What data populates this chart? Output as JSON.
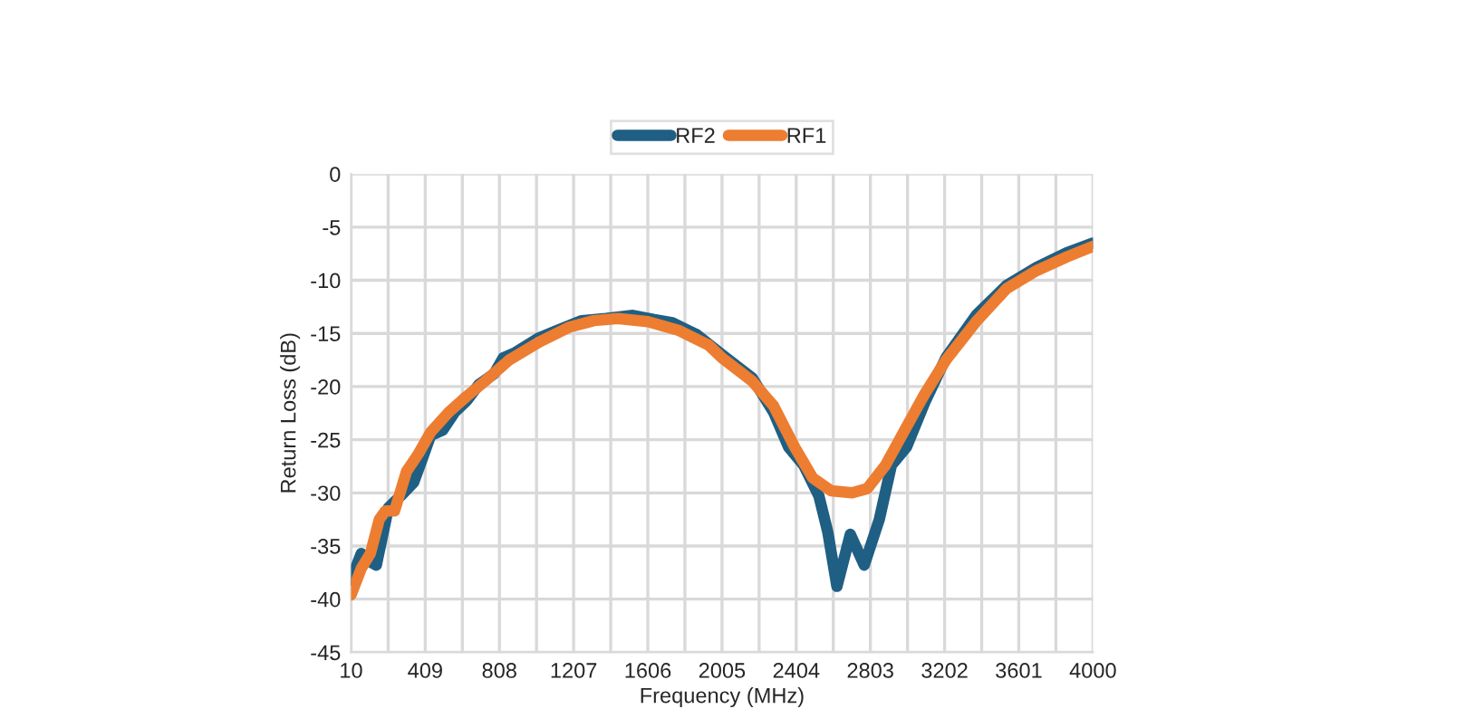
{
  "chart_data": {
    "type": "line",
    "xlabel": "Frequency (MHz)",
    "ylabel": "Return Loss (dB)",
    "legend": "top",
    "grid": true,
    "xlim": [
      10,
      4000
    ],
    "ylim": [
      -45,
      0
    ],
    "xticks": [
      10,
      {
        "value": 209.5,
        "label": null
      },
      409,
      {
        "value": 608.5,
        "label": null
      },
      808,
      {
        "value": 1007.5,
        "label": null
      },
      1207,
      {
        "value": 1406.5,
        "label": null
      },
      1606,
      {
        "value": 1805.5,
        "label": null
      },
      2005,
      {
        "value": 2204.5,
        "label": null
      },
      2404,
      {
        "value": 2603.5,
        "label": null
      },
      2803,
      {
        "value": 3002.5,
        "label": null
      },
      3202,
      {
        "value": 3401.5,
        "label": null
      },
      3601,
      {
        "value": 3800.5,
        "label": null
      },
      4000
    ],
    "yticks": [
      0,
      -5,
      -10,
      -15,
      -20,
      -25,
      -30,
      -35,
      -40,
      -45
    ],
    "series": [
      {
        "name": "RF2",
        "color": "#1f5f84",
        "x": [
          10,
          65,
          114,
          146,
          211,
          276,
          347,
          389,
          438,
          503,
          568,
          633,
          698,
          779,
          828,
          893,
          1023,
          1120,
          1250,
          1380,
          1526,
          1640,
          1738,
          1868,
          2005,
          2168,
          2282,
          2363,
          2444,
          2526,
          2574,
          2623,
          2695,
          2770,
          2851,
          2916,
          2997,
          3095,
          3209,
          3371,
          3534,
          3696,
          3859,
          4000
        ],
        "values": [
          -38.2,
          -35.7,
          -36.5,
          -36.8,
          -31.4,
          -30.3,
          -29,
          -27,
          -24.6,
          -24.1,
          -22.4,
          -21.3,
          -19.8,
          -18.8,
          -17.3,
          -16.8,
          -15.4,
          -14.7,
          -13.8,
          -13.6,
          -13.3,
          -13.7,
          -14,
          -15.1,
          -17,
          -19.2,
          -22.4,
          -25.7,
          -27.4,
          -30.3,
          -33.7,
          -38.8,
          -33.9,
          -36.8,
          -32.5,
          -27.4,
          -25.7,
          -21.5,
          -17.3,
          -13.3,
          -10.5,
          -8.8,
          -7.4,
          -6.5
        ]
      },
      {
        "name": "RF1",
        "color": "#ed7d31",
        "x": [
          10,
          65,
          114,
          162,
          195,
          244,
          308,
          373,
          438,
          536,
          633,
          730,
          860,
          1023,
          1185,
          1315,
          1445,
          1607,
          1770,
          1933,
          2005,
          2168,
          2282,
          2396,
          2493,
          2591,
          2705,
          2786,
          2884,
          2981,
          3095,
          3209,
          3371,
          3534,
          3696,
          3859,
          4000
        ],
        "values": [
          -39.6,
          -37.1,
          -35.7,
          -32.5,
          -31.7,
          -31.7,
          -28,
          -26.3,
          -24.3,
          -22.4,
          -20.9,
          -19.5,
          -17.5,
          -15.8,
          -14.4,
          -13.8,
          -13.6,
          -13.9,
          -14.7,
          -16.1,
          -17.3,
          -19.5,
          -21.8,
          -25.7,
          -28.6,
          -29.8,
          -30,
          -29.6,
          -27.4,
          -24.3,
          -20.7,
          -17.5,
          -13.9,
          -10.8,
          -9.1,
          -7.8,
          -6.8
        ]
      }
    ]
  }
}
